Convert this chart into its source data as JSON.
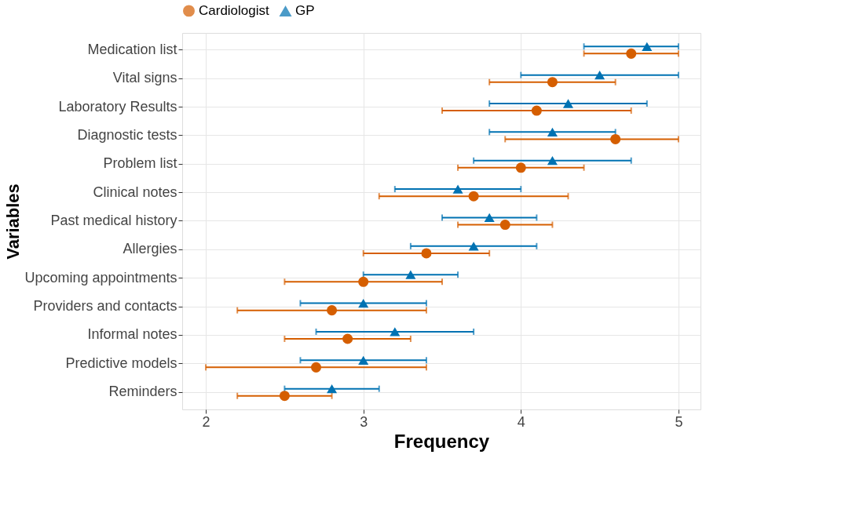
{
  "chart_data": {
    "type": "scatter",
    "orientation": "horizontal",
    "xlabel": "Frequency",
    "ylabel": "Variables",
    "categories": [
      "Medication list",
      "Vital signs",
      "Laboratory Results",
      "Diagnostic tests",
      "Problem list",
      "Clinical notes",
      "Past medical history",
      "Allergies",
      "Upcoming appointments",
      "Providers and contacts",
      "Informal notes",
      "Predictive models",
      "Reminders"
    ],
    "series": [
      {
        "name": "Cardiologist",
        "color": "#d55e00",
        "marker": "circle",
        "values": [
          4.7,
          4.2,
          4.1,
          4.6,
          4.0,
          3.7,
          3.9,
          3.4,
          3.0,
          2.8,
          2.9,
          2.7,
          2.5
        ],
        "errors": [
          [
            4.4,
            5.0
          ],
          [
            3.8,
            4.6
          ],
          [
            3.5,
            4.7
          ],
          [
            3.9,
            5.0
          ],
          [
            3.6,
            4.4
          ],
          [
            3.1,
            4.3
          ],
          [
            3.6,
            4.2
          ],
          [
            3.0,
            3.8
          ],
          [
            2.5,
            3.5
          ],
          [
            2.2,
            3.4
          ],
          [
            2.5,
            3.3
          ],
          [
            2.0,
            3.4
          ],
          [
            2.2,
            2.8
          ]
        ]
      },
      {
        "name": "GP",
        "color": "#0072b2",
        "marker": "triangle",
        "values": [
          4.8,
          4.5,
          4.3,
          4.2,
          4.2,
          3.6,
          3.8,
          3.7,
          3.3,
          3.0,
          3.2,
          3.0,
          2.8
        ],
        "errors": [
          [
            4.4,
            5.0
          ],
          [
            4.0,
            5.0
          ],
          [
            3.8,
            4.8
          ],
          [
            3.8,
            4.6
          ],
          [
            3.7,
            4.7
          ],
          [
            3.2,
            4.0
          ],
          [
            3.5,
            4.1
          ],
          [
            3.3,
            4.1
          ],
          [
            3.0,
            3.6
          ],
          [
            2.6,
            3.4
          ],
          [
            2.7,
            3.7
          ],
          [
            2.6,
            3.4
          ],
          [
            2.5,
            3.1
          ]
        ]
      }
    ],
    "xlim": [
      1.85,
      5.14
    ],
    "xticks": [
      2,
      3,
      4,
      5
    ],
    "grid": true,
    "legend": "top"
  }
}
